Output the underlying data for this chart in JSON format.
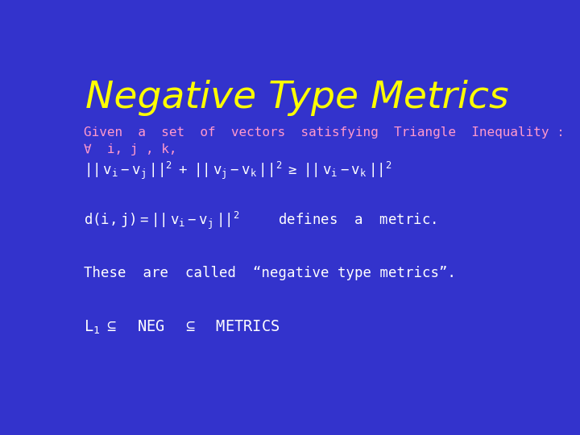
{
  "background_color": "#3333cc",
  "title": "Negative Type Metrics",
  "title_color": "#ffff00",
  "title_fontsize": 34,
  "pink": "#ff99cc",
  "white": "#ffffff",
  "fig_width": 7.2,
  "fig_height": 5.4,
  "dpi": 100,
  "line1": "Given  a  set  of  vectors  satisfying  Triangle  Inequality :",
  "line2": "∀  i, j , k,",
  "line3_math": "|| v_i - v_j ||^2 + || v_j - v_k ||^2 ≥ || v_i - v_k ||^2",
  "line4_math": "d(i, j) = || v_i - v_j ||^2    defines  a  metric.",
  "line5": "These  are  called  “negative type metrics”.",
  "line6": "L_1 ⊆  NEG  ⊆  METRICS"
}
